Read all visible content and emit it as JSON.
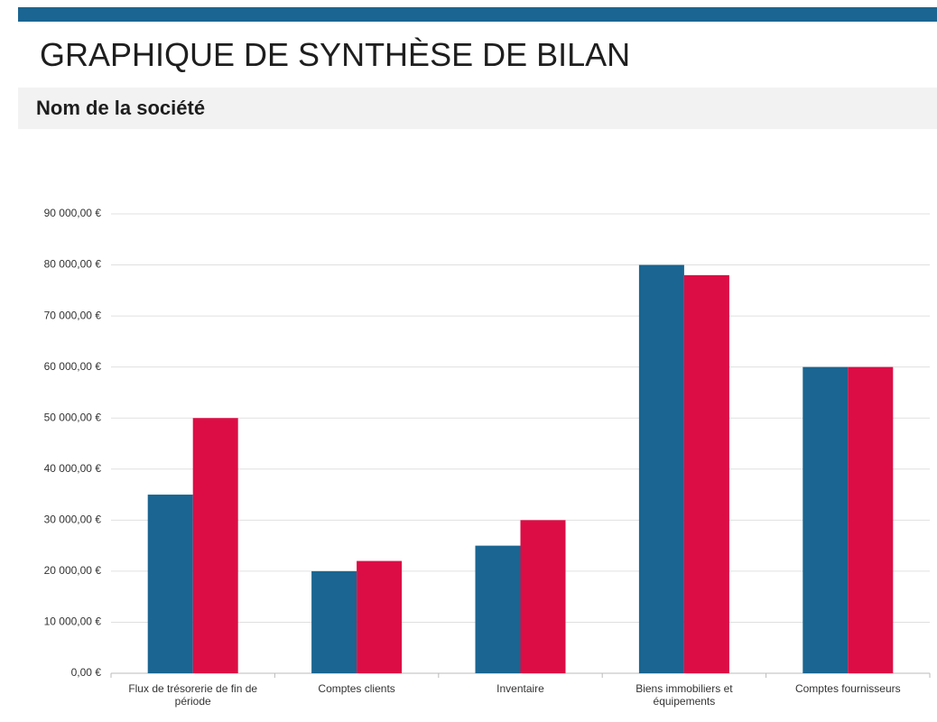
{
  "header": {
    "title": "GRAPHIQUE DE SYNTHÈSE DE BILAN",
    "company": "Nom de la société"
  },
  "chart_data": {
    "type": "bar",
    "categories": [
      "Flux de trésorerie de fin de période",
      "Comptes clients",
      "Inventaire",
      "Biens immobiliers et équipements",
      "Comptes fournisseurs"
    ],
    "series": [
      {
        "color": "#1a6591",
        "values": [
          35000,
          20000,
          25000,
          80000,
          60000
        ]
      },
      {
        "color": "#dc0d45",
        "values": [
          50000,
          22000,
          30000,
          78000,
          60000
        ]
      }
    ],
    "ylim": [
      0,
      90000
    ],
    "yticks": [
      {
        "value": 0,
        "label": "0,00 €"
      },
      {
        "value": 10000,
        "label": "10 000,00 €"
      },
      {
        "value": 20000,
        "label": "20 000,00 €"
      },
      {
        "value": 30000,
        "label": "30 000,00 €"
      },
      {
        "value": 40000,
        "label": "40 000,00 €"
      },
      {
        "value": 50000,
        "label": "50 000,00 €"
      },
      {
        "value": 60000,
        "label": "60 000,00 €"
      },
      {
        "value": 70000,
        "label": "70 000,00 €"
      },
      {
        "value": 80000,
        "label": "80 000,00 €"
      },
      {
        "value": 90000,
        "label": "90 000,00 €"
      }
    ],
    "grid": true
  }
}
